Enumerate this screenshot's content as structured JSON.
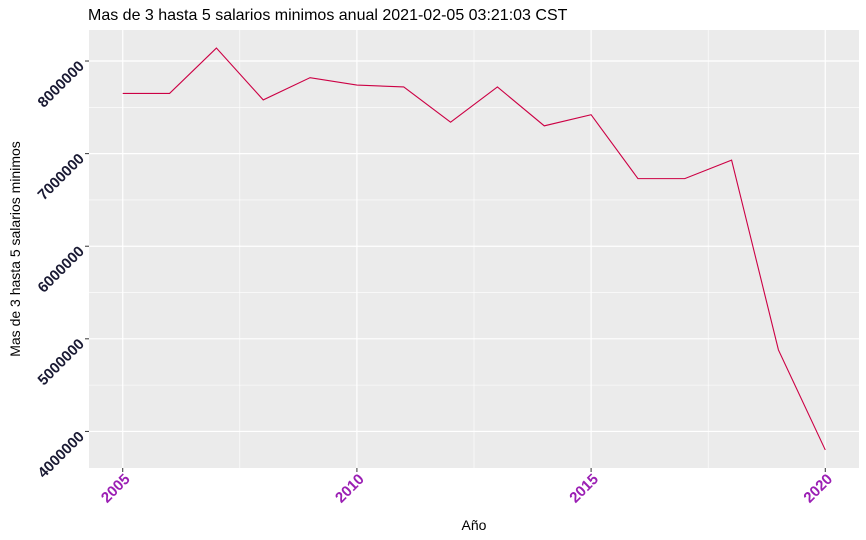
{
  "chart_data": {
    "type": "line",
    "title": "Mas de 3 hasta 5 salarios minimos anual  2021-02-05 03:21:03 CST",
    "xlabel": "Año",
    "ylabel": "Mas de 3 hasta 5 salarios minimos",
    "x": [
      2005,
      2006,
      2007,
      2008,
      2009,
      2010,
      2011,
      2012,
      2013,
      2014,
      2015,
      2016,
      2017,
      2018,
      2019,
      2020
    ],
    "series": [
      {
        "values": [
          7650000,
          7650000,
          8140000,
          7580000,
          7820000,
          7740000,
          7720000,
          7340000,
          7720000,
          7300000,
          7420000,
          6730000,
          6730000,
          6930000,
          4880000,
          3800000
        ]
      }
    ],
    "xlim": [
      2004.28,
      2020.72
    ],
    "ylim": [
      3605000,
      8335000
    ],
    "x_ticks": [
      "2005",
      "2010",
      "2015",
      "2020"
    ],
    "y_ticks": [
      "4000000",
      "5000000",
      "6000000",
      "7000000",
      "8000000"
    ],
    "grid": true,
    "line_color": "#cc0044",
    "xtick_color": "#9b1fb4",
    "ytick_color": "#1a1a33",
    "panel_color": "#ebebeb"
  }
}
